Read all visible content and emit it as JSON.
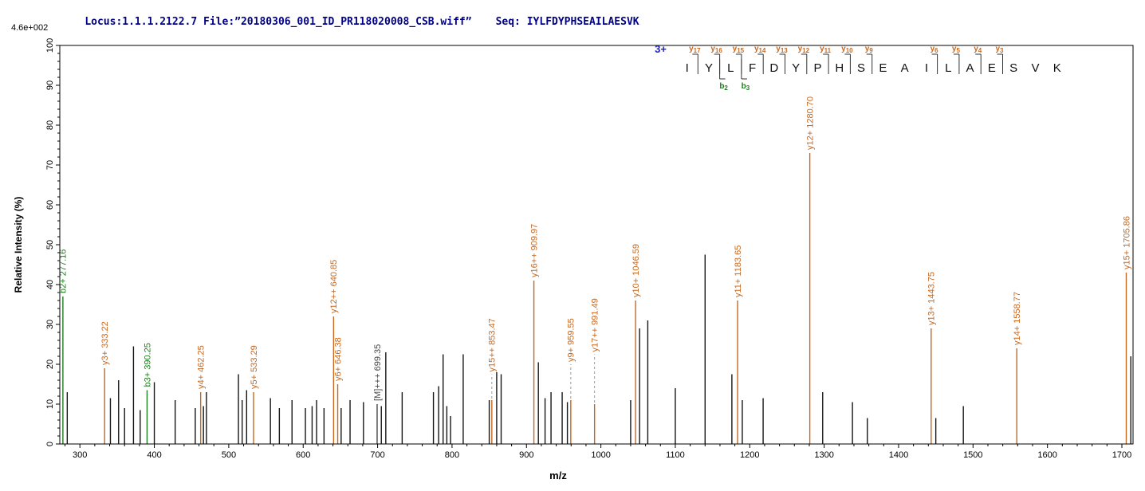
{
  "header": {
    "locus_file": "Locus:1.1.1.2122.7 File:”20180306_001_ID_PR118020008_CSB.wiff”",
    "seq_label": "Seq: IYLFDYPHSEAILAESVK"
  },
  "axis": {
    "y_title": "Relative Intensity (%)",
    "y_max_abs": "4.6e+002",
    "x_title": "m/z"
  },
  "fragmentation": {
    "charge": "3+",
    "residues": "IYLFDYPHSEAILAESVK",
    "y_ions": [
      {
        "after": 1,
        "label": "y17"
      },
      {
        "after": 2,
        "label": "y16"
      },
      {
        "after": 3,
        "label": "y15"
      },
      {
        "after": 4,
        "label": "y14"
      },
      {
        "after": 5,
        "label": "y13"
      },
      {
        "after": 6,
        "label": "y12"
      },
      {
        "after": 7,
        "label": "y11"
      },
      {
        "after": 8,
        "label": "y10"
      },
      {
        "after": 9,
        "label": "y9"
      },
      {
        "after": 12,
        "label": "y6"
      },
      {
        "after": 13,
        "label": "y5"
      },
      {
        "after": 14,
        "label": "y4"
      },
      {
        "after": 15,
        "label": "y3"
      }
    ],
    "b_ions": [
      {
        "after": 2,
        "label": "b2"
      },
      {
        "after": 3,
        "label": "b3"
      }
    ]
  },
  "chart_data": {
    "type": "bar",
    "subtype": "ms2-centroid-spectrum",
    "title": "",
    "xlabel": "m/z",
    "ylabel": "Relative Intensity (%)",
    "xlim": [
      273,
      1715
    ],
    "ylim": [
      0,
      100
    ],
    "x_major_tick": 100,
    "x_minor_tick": 20,
    "y_major_tick": 10,
    "y_minor_tick": 2,
    "grid": false,
    "colors": {
      "k": "#161616",
      "y": "#c8681e",
      "b": "#1e7d1e",
      "m": "#474747"
    },
    "peaks": [
      {
        "mz": 277.16,
        "i": 37,
        "c": "b",
        "label": "b2+ 277.16"
      },
      {
        "mz": 283,
        "i": 13,
        "c": "k"
      },
      {
        "mz": 333.22,
        "i": 19,
        "c": "y",
        "label": "y3+ 333.22"
      },
      {
        "mz": 341,
        "i": 11.5,
        "c": "k"
      },
      {
        "mz": 352,
        "i": 16,
        "c": "k"
      },
      {
        "mz": 360,
        "i": 9,
        "c": "k"
      },
      {
        "mz": 372,
        "i": 24.5,
        "c": "k"
      },
      {
        "mz": 381,
        "i": 8.5,
        "c": "k"
      },
      {
        "mz": 390.25,
        "i": 13.5,
        "c": "b",
        "label": "b3+ 390.25"
      },
      {
        "mz": 400,
        "i": 15.5,
        "c": "k"
      },
      {
        "mz": 428,
        "i": 11,
        "c": "k"
      },
      {
        "mz": 455,
        "i": 9,
        "c": "k"
      },
      {
        "mz": 462.25,
        "i": 13,
        "c": "y",
        "label": "y4+ 462.25"
      },
      {
        "mz": 466,
        "i": 9.5,
        "c": "k"
      },
      {
        "mz": 470,
        "i": 13,
        "c": "k"
      },
      {
        "mz": 513,
        "i": 17.5,
        "c": "k"
      },
      {
        "mz": 518,
        "i": 11,
        "c": "k"
      },
      {
        "mz": 524,
        "i": 13.5,
        "c": "k"
      },
      {
        "mz": 533.29,
        "i": 13,
        "c": "y",
        "label": "y5+ 533.29"
      },
      {
        "mz": 556,
        "i": 11.5,
        "c": "k"
      },
      {
        "mz": 568,
        "i": 9,
        "c": "k"
      },
      {
        "mz": 585,
        "i": 11,
        "c": "k"
      },
      {
        "mz": 603,
        "i": 9,
        "c": "k"
      },
      {
        "mz": 612,
        "i": 9.5,
        "c": "k"
      },
      {
        "mz": 618,
        "i": 11,
        "c": "k"
      },
      {
        "mz": 628,
        "i": 9,
        "c": "k"
      },
      {
        "mz": 640.85,
        "i": 32,
        "c": "y",
        "label": "y12++ 640.85"
      },
      {
        "mz": 646.38,
        "i": 15,
        "c": "y",
        "label": "y6+ 646.38"
      },
      {
        "mz": 651,
        "i": 9,
        "c": "k"
      },
      {
        "mz": 663,
        "i": 11,
        "c": "k"
      },
      {
        "mz": 681,
        "i": 10.5,
        "c": "k"
      },
      {
        "mz": 699.35,
        "i": 10,
        "c": "m",
        "label": "[M]+++ 699.35"
      },
      {
        "mz": 705,
        "i": 9.5,
        "c": "k"
      },
      {
        "mz": 711,
        "i": 23,
        "c": "k"
      },
      {
        "mz": 733,
        "i": 13,
        "c": "k"
      },
      {
        "mz": 775,
        "i": 13,
        "c": "k"
      },
      {
        "mz": 782,
        "i": 14.5,
        "c": "k"
      },
      {
        "mz": 788,
        "i": 22.5,
        "c": "k"
      },
      {
        "mz": 793,
        "i": 9.5,
        "c": "k"
      },
      {
        "mz": 798,
        "i": 7,
        "c": "k"
      },
      {
        "mz": 815,
        "i": 22.5,
        "c": "k"
      },
      {
        "mz": 850,
        "i": 11,
        "c": "k"
      },
      {
        "mz": 853.47,
        "i": 11,
        "c": "y",
        "label": "y15++ 853.47",
        "la": 17.5
      },
      {
        "mz": 860,
        "i": 18,
        "c": "k"
      },
      {
        "mz": 866,
        "i": 17.5,
        "c": "k"
      },
      {
        "mz": 909.97,
        "i": 41,
        "c": "y",
        "label": "y16++ 909.97"
      },
      {
        "mz": 916,
        "i": 20.5,
        "c": "k"
      },
      {
        "mz": 925,
        "i": 11.5,
        "c": "k"
      },
      {
        "mz": 933,
        "i": 13,
        "c": "k"
      },
      {
        "mz": 948,
        "i": 13,
        "c": "k"
      },
      {
        "mz": 955,
        "i": 10.5,
        "c": "k"
      },
      {
        "mz": 959.55,
        "i": 11,
        "c": "y",
        "label": "y9+ 959.55",
        "la": 20
      },
      {
        "mz": 991.49,
        "i": 10,
        "c": "y",
        "label": "y17++ 991.49",
        "la": 22.5
      },
      {
        "mz": 1040,
        "i": 11,
        "c": "k"
      },
      {
        "mz": 1046.59,
        "i": 36,
        "c": "y",
        "label": "y10+ 1046.59"
      },
      {
        "mz": 1052,
        "i": 29,
        "c": "k"
      },
      {
        "mz": 1063,
        "i": 31,
        "c": "k"
      },
      {
        "mz": 1100,
        "i": 14,
        "c": "k"
      },
      {
        "mz": 1140,
        "i": 47.5,
        "c": "k"
      },
      {
        "mz": 1176,
        "i": 17.5,
        "c": "k"
      },
      {
        "mz": 1183.65,
        "i": 36,
        "c": "y",
        "label": "y11+ 1183.65"
      },
      {
        "mz": 1190,
        "i": 11,
        "c": "k"
      },
      {
        "mz": 1218,
        "i": 11.5,
        "c": "k"
      },
      {
        "mz": 1280.7,
        "i": 73,
        "c": "y",
        "label": "y12+ 1280.70"
      },
      {
        "mz": 1298,
        "i": 13,
        "c": "k"
      },
      {
        "mz": 1338,
        "i": 10.5,
        "c": "k"
      },
      {
        "mz": 1358,
        "i": 6.5,
        "c": "k"
      },
      {
        "mz": 1443.75,
        "i": 29,
        "c": "y",
        "label": "y13+ 1443.75"
      },
      {
        "mz": 1450,
        "i": 6.5,
        "c": "k"
      },
      {
        "mz": 1487,
        "i": 9.5,
        "c": "k"
      },
      {
        "mz": 1558.77,
        "i": 24,
        "c": "y",
        "label": "y14+ 1558.77"
      },
      {
        "mz": 1705.86,
        "i": 43,
        "c": "y",
        "label": "y15+ 1705.86"
      },
      {
        "mz": 1712,
        "i": 22,
        "c": "k"
      }
    ]
  }
}
